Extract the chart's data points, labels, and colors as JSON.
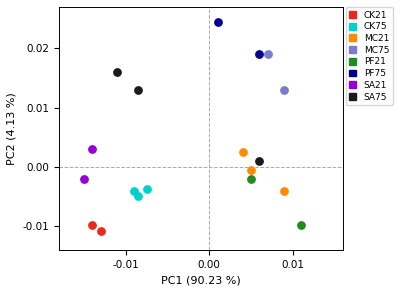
{
  "title": "",
  "xlabel": "PC1 (90.23 %)",
  "ylabel": "PC2 (4.13 %)",
  "xlim": [
    -0.018,
    0.016
  ],
  "ylim": [
    -0.014,
    0.027
  ],
  "xticks": [
    -0.01,
    0.0,
    0.01
  ],
  "yticks": [
    -0.01,
    0.0,
    0.01,
    0.02
  ],
  "groups": {
    "CK21": {
      "color": "#e8291c",
      "points": [
        [
          -0.014,
          -0.0098
        ],
        [
          -0.013,
          -0.0108
        ]
      ]
    },
    "CK75": {
      "color": "#00d0d0",
      "points": [
        [
          -0.009,
          -0.004
        ],
        [
          -0.0085,
          -0.005
        ],
        [
          -0.0075,
          -0.0038
        ]
      ]
    },
    "MC21": {
      "color": "#ff8c00",
      "points": [
        [
          0.004,
          0.0025
        ],
        [
          0.005,
          -0.0005
        ],
        [
          0.009,
          -0.004
        ]
      ]
    },
    "MC75": {
      "color": "#7b7bcc",
      "points": [
        [
          0.007,
          0.019
        ],
        [
          0.009,
          0.013
        ]
      ]
    },
    "PF21": {
      "color": "#228b22",
      "points": [
        [
          0.005,
          -0.002
        ],
        [
          0.011,
          -0.0098
        ]
      ]
    },
    "PF75": {
      "color": "#00008b",
      "points": [
        [
          0.001,
          0.0245
        ],
        [
          0.006,
          0.019
        ]
      ]
    },
    "SA21": {
      "color": "#9400d3",
      "points": [
        [
          -0.014,
          0.003
        ],
        [
          -0.015,
          -0.002
        ]
      ]
    },
    "SA75": {
      "color": "#1a1a1a",
      "points": [
        [
          -0.011,
          0.016
        ],
        [
          -0.0085,
          0.013
        ],
        [
          0.006,
          0.001
        ]
      ]
    }
  },
  "legend_colors": {
    "CK21": "#e8291c",
    "CK75": "#00d0d0",
    "MC21": "#ff8c00",
    "MC75": "#7b7bcc",
    "PF21": "#228b22",
    "PF75": "#00008b",
    "SA21": "#9400d3",
    "SA75": "#1a1a1a"
  },
  "background_color": "#ffffff",
  "marker_size": 28,
  "figsize": [
    4.0,
    2.92
  ],
  "dpi": 100
}
